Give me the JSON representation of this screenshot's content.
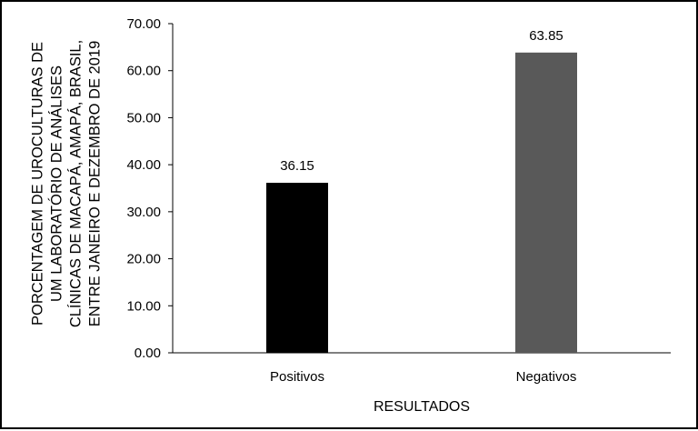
{
  "chart_data": {
    "type": "bar",
    "categories": [
      "Positivos",
      "Negativos"
    ],
    "values": [
      36.15,
      63.85
    ],
    "data_labels": [
      "36.15",
      "63.85"
    ],
    "colors": [
      "#000000",
      "#595959"
    ],
    "xlabel": "RESULTADOS",
    "ylabel_lines": [
      "PORCENTAGEM DE UROCULTURAS DE",
      "UM LABORATÓRIO DE ANÁLISES",
      "CLÍNICAS DE MACAPÁ, AMAPÁ, BRASIL,",
      "ENTRE JANEIRO E DEZEMBRO DE 2019"
    ],
    "ylim": [
      0,
      70
    ],
    "yticks": [
      "0.00",
      "10.00",
      "20.00",
      "30.00",
      "40.00",
      "50.00",
      "60.00",
      "70.00"
    ],
    "grid": false,
    "legend": "none"
  }
}
